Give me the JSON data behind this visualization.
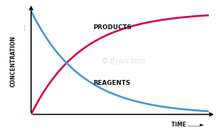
{
  "background_color": "#ffffff",
  "products_color": "#d6005a",
  "reagents_color": "#4499dd",
  "products_label": "PRODUCTS",
  "reagents_label": "REAGENTS",
  "xlabel": "TIME",
  "ylabel": "CONCENTRATION",
  "label_fontsize": 6.5,
  "axis_label_fontsize": 5.5,
  "line_width": 2.0,
  "watermark": "© Byjus.com",
  "watermark_fontsize": 7,
  "watermark_color": "#cccccc"
}
